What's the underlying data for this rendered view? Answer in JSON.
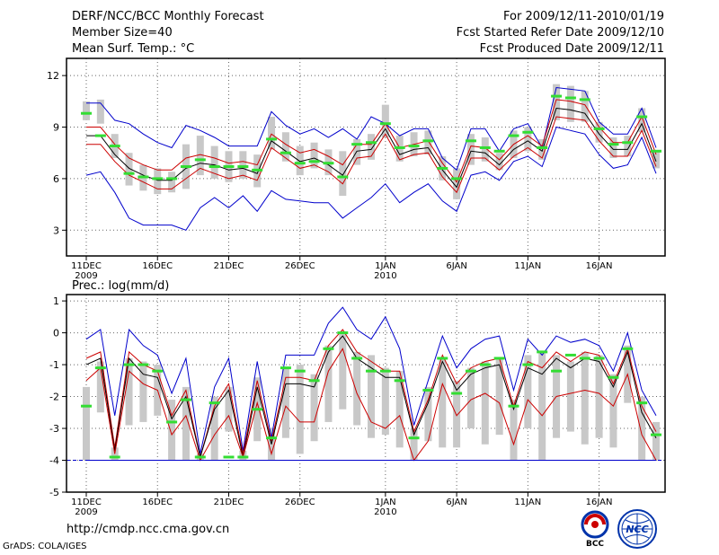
{
  "header": {
    "left": [
      "DERF/NCC/BCC Monthly Forecast",
      "Member Size=40",
      "Mean Surf. Temp.: °C"
    ],
    "right": [
      "For 2009/12/11-2010/01/19",
      "Fcst Started Refer Date 2009/12/10",
      "Fcst Produced Date 2009/12/11"
    ]
  },
  "footer": {
    "url": "http://cmdp.ncc.cma.gov.cn",
    "credit": "GrADS: COLA/IGES"
  },
  "logos": {
    "bcc": "BCC",
    "ncc": "NCC"
  },
  "colors": {
    "ensemble_mean": "#000000",
    "spread": "#cc0000",
    "extremes": "#0000cc",
    "member_bar": "#c8c8c8",
    "observed_marker": "#33dd33",
    "floor_line": "#0000cc",
    "grid": "#666666"
  },
  "chart_data": [
    {
      "type": "line",
      "title": "Mean Surf. Temp.: °C",
      "ylim": [
        1.5,
        13
      ],
      "yticks": [
        3,
        6,
        9,
        12
      ],
      "xticks": [
        {
          "day": 0,
          "label": "11DEC",
          "sub": "2009"
        },
        {
          "day": 5,
          "label": "16DEC",
          "sub": ""
        },
        {
          "day": 10,
          "label": "21DEC",
          "sub": ""
        },
        {
          "day": 15,
          "label": "26DEC",
          "sub": ""
        },
        {
          "day": 21,
          "label": "1JAN",
          "sub": "2010"
        },
        {
          "day": 26,
          "label": "6JAN",
          "sub": ""
        },
        {
          "day": 31,
          "label": "11JAN",
          "sub": ""
        },
        {
          "day": 36,
          "label": "16JAN",
          "sub": ""
        }
      ],
      "series": [
        {
          "name": "max",
          "values": [
            6.2,
            6.4,
            5.2,
            3.7,
            3.3,
            3.3,
            3.3,
            3.0,
            4.3,
            4.9,
            4.3,
            5.0,
            4.1,
            5.3,
            4.8,
            4.7,
            4.6,
            4.6,
            3.7,
            4.3,
            4.9,
            5.7,
            4.6,
            5.2,
            5.7,
            4.7,
            4.1,
            6.2,
            6.4,
            5.9,
            7.0,
            7.3,
            6.7,
            9.0,
            8.8,
            8.6,
            7.4,
            6.6,
            6.8,
            8.4,
            6.3
          ]
        },
        {
          "name": "min",
          "values": [
            10.4,
            10.4,
            9.4,
            9.2,
            8.6,
            8.1,
            7.8,
            9.1,
            8.8,
            8.4,
            7.9,
            7.9,
            7.9,
            9.9,
            9.1,
            8.6,
            8.9,
            8.4,
            8.9,
            8.3,
            9.6,
            9.2,
            8.5,
            8.9,
            8.9,
            7.2,
            6.5,
            8.9,
            8.9,
            7.6,
            8.9,
            9.2,
            7.8,
            11.3,
            11.2,
            11.1,
            9.3,
            8.6,
            8.6,
            10.1,
            7.8
          ]
        },
        {
          "name": "upper",
          "values": [
            9.0,
            9.0,
            8.0,
            7.2,
            6.8,
            6.5,
            6.5,
            7.2,
            7.4,
            7.2,
            6.9,
            7.0,
            6.8,
            8.6,
            8.0,
            7.5,
            7.7,
            7.3,
            6.8,
            8.0,
            8.0,
            9.2,
            7.8,
            8.0,
            8.2,
            6.9,
            5.8,
            7.9,
            7.8,
            7.1,
            8.0,
            8.5,
            7.9,
            10.6,
            10.5,
            10.3,
            9.0,
            8.1,
            8.1,
            9.6,
            7.4
          ]
        },
        {
          "name": "mean",
          "values": [
            8.5,
            8.5,
            7.4,
            6.6,
            6.2,
            5.9,
            5.9,
            6.6,
            6.9,
            6.8,
            6.5,
            6.6,
            6.3,
            8.2,
            7.6,
            7.0,
            7.2,
            6.8,
            6.2,
            7.6,
            7.7,
            8.9,
            7.4,
            7.7,
            7.8,
            6.5,
            5.5,
            7.6,
            7.5,
            6.8,
            7.7,
            8.2,
            7.6,
            10.1,
            10.0,
            9.8,
            8.6,
            7.7,
            7.7,
            9.2,
            7.0
          ]
        },
        {
          "name": "lower",
          "values": [
            8.0,
            8.0,
            7.0,
            6.2,
            5.8,
            5.4,
            5.4,
            6.0,
            6.6,
            6.3,
            6.0,
            6.2,
            5.9,
            7.8,
            7.2,
            6.6,
            6.8,
            6.4,
            5.7,
            7.2,
            7.3,
            8.6,
            7.1,
            7.4,
            7.5,
            6.1,
            5.2,
            7.2,
            7.2,
            6.5,
            7.3,
            7.8,
            7.2,
            9.6,
            9.5,
            9.4,
            8.2,
            7.3,
            7.3,
            8.8,
            6.7
          ]
        }
      ],
      "bars": [
        [
          9.4,
          10.5
        ],
        [
          9.2,
          10.6
        ],
        [
          7.2,
          8.6
        ],
        [
          5.6,
          7.5
        ],
        [
          5.3,
          6.8
        ],
        [
          5.1,
          6.6
        ],
        [
          5.2,
          6.4
        ],
        [
          5.4,
          8.0
        ],
        [
          6.2,
          8.5
        ],
        [
          6.0,
          7.9
        ],
        [
          5.8,
          7.6
        ],
        [
          6.0,
          7.6
        ],
        [
          5.5,
          7.4
        ],
        [
          7.7,
          9.6
        ],
        [
          7.0,
          8.7
        ],
        [
          6.2,
          7.9
        ],
        [
          6.6,
          8.1
        ],
        [
          6.2,
          7.7
        ],
        [
          5.0,
          7.6
        ],
        [
          6.8,
          8.3
        ],
        [
          7.1,
          8.6
        ],
        [
          8.4,
          10.3
        ],
        [
          7.0,
          8.5
        ],
        [
          7.3,
          8.7
        ],
        [
          7.4,
          8.8
        ],
        [
          5.9,
          7.3
        ],
        [
          4.8,
          6.6
        ],
        [
          6.8,
          8.6
        ],
        [
          7.0,
          8.4
        ],
        [
          6.5,
          7.5
        ],
        [
          7.2,
          8.8
        ],
        [
          7.6,
          9.0
        ],
        [
          7.1,
          8.3
        ],
        [
          9.4,
          11.5
        ],
        [
          9.3,
          11.4
        ],
        [
          9.3,
          11.1
        ],
        [
          8.1,
          9.3
        ],
        [
          7.2,
          8.4
        ],
        [
          7.3,
          8.5
        ],
        [
          8.7,
          10.1
        ],
        [
          6.6,
          7.6
        ]
      ],
      "observed": [
        9.8,
        8.5,
        7.9,
        6.3,
        6.1,
        6.0,
        6.0,
        6.7,
        7.1,
        6.7,
        6.7,
        6.7,
        6.5,
        8.3,
        7.5,
        6.9,
        7.0,
        6.9,
        6.1,
        8.0,
        8.1,
        9.2,
        7.8,
        7.9,
        8.2,
        6.6,
        6.0,
        8.2,
        7.8,
        7.6,
        8.5,
        8.7,
        7.8,
        10.8,
        10.7,
        10.6,
        8.9,
        8.0,
        8.1,
        9.6,
        7.6
      ]
    },
    {
      "type": "line",
      "title": "Prec.: log(mm/d)",
      "ylim": [
        -5,
        1.2
      ],
      "yticks": [
        -5,
        -4,
        -3,
        -2,
        -1,
        0,
        1
      ],
      "floor": -4,
      "xticks": [
        {
          "day": 0,
          "label": "11DEC",
          "sub": "2009"
        },
        {
          "day": 5,
          "label": "16DEC",
          "sub": ""
        },
        {
          "day": 10,
          "label": "21DEC",
          "sub": ""
        },
        {
          "day": 15,
          "label": "26DEC",
          "sub": ""
        },
        {
          "day": 21,
          "label": "1JAN",
          "sub": "2010"
        },
        {
          "day": 26,
          "label": "6JAN",
          "sub": ""
        },
        {
          "day": 31,
          "label": "11JAN",
          "sub": ""
        },
        {
          "day": 36,
          "label": "16JAN",
          "sub": ""
        }
      ],
      "series": [
        {
          "name": "max",
          "values": [
            -0.2,
            0.1,
            -2.6,
            0.1,
            -0.4,
            -0.7,
            -1.9,
            -0.8,
            -3.8,
            -1.7,
            -0.8,
            -3.7,
            -0.9,
            -3.3,
            -0.7,
            -0.7,
            -0.7,
            0.3,
            0.8,
            0.1,
            -0.2,
            0.5,
            -0.5,
            -2.9,
            -1.5,
            -0.1,
            -1.1,
            -0.5,
            -0.2,
            -0.1,
            -1.8,
            -0.2,
            -0.7,
            -0.1,
            -0.3,
            -0.2,
            -0.4,
            -1.2,
            0.0,
            -1.8,
            -2.6
          ]
        },
        {
          "name": "upper",
          "values": [
            -0.8,
            -0.6,
            -3.6,
            -0.6,
            -1.0,
            -1.2,
            -2.6,
            -1.8,
            -3.9,
            -2.3,
            -1.6,
            -3.8,
            -1.5,
            -3.4,
            -1.4,
            -1.4,
            -1.5,
            -0.4,
            0.1,
            -0.6,
            -0.9,
            -1.2,
            -1.2,
            -3.1,
            -2.1,
            -0.7,
            -1.6,
            -1.1,
            -0.9,
            -0.8,
            -2.3,
            -0.9,
            -1.1,
            -0.6,
            -0.9,
            -0.6,
            -0.7,
            -1.6,
            -0.5,
            -2.3,
            -3.1
          ]
        },
        {
          "name": "mean",
          "values": [
            -1.0,
            -0.8,
            -3.7,
            -0.8,
            -1.3,
            -1.4,
            -2.7,
            -2.0,
            -3.9,
            -2.4,
            -1.8,
            -3.9,
            -1.7,
            -3.5,
            -1.6,
            -1.6,
            -1.7,
            -0.6,
            -0.1,
            -0.8,
            -1.1,
            -1.4,
            -1.4,
            -3.2,
            -2.2,
            -0.9,
            -1.8,
            -1.3,
            -1.1,
            -1.0,
            -2.4,
            -1.1,
            -1.3,
            -0.8,
            -1.1,
            -0.8,
            -0.9,
            -1.7,
            -0.6,
            -2.5,
            -3.3
          ]
        },
        {
          "name": "lower",
          "values": [
            -1.5,
            -1.1,
            -3.8,
            -1.2,
            -1.6,
            -1.8,
            -3.2,
            -2.6,
            -4.0,
            -3.2,
            -2.6,
            -3.9,
            -2.2,
            -3.8,
            -2.3,
            -2.8,
            -2.8,
            -1.2,
            -0.5,
            -1.9,
            -2.8,
            -3.0,
            -2.6,
            -4.0,
            -3.4,
            -1.6,
            -2.6,
            -2.1,
            -1.9,
            -2.2,
            -3.5,
            -2.1,
            -2.6,
            -2.0,
            -1.9,
            -1.8,
            -1.9,
            -2.3,
            -1.3,
            -3.2,
            -4.0
          ]
        },
        {
          "name": "min",
          "values": [
            -4.0,
            -4.0,
            -4.0,
            -4.0,
            -4.0,
            -4.0,
            -4.0,
            -4.0,
            -4.0,
            -4.0,
            -4.0,
            -4.0,
            -4.0,
            -4.0,
            -4.0,
            -4.0,
            -4.0,
            -4.0,
            -4.0,
            -4.0,
            -4.0,
            -4.0,
            -4.0,
            -4.0,
            -4.0,
            -4.0,
            -4.0,
            -4.0,
            -4.0,
            -4.0,
            -4.0,
            -4.0,
            -4.0,
            -4.0,
            -4.0,
            -4.0,
            -4.0,
            -4.0,
            -4.0,
            -4.0,
            -4.0
          ]
        }
      ],
      "bars": [
        [
          -4.0,
          -1.7
        ],
        [
          -2.5,
          -0.9
        ],
        [
          -4.0,
          -3.6
        ],
        [
          -2.9,
          -0.8
        ],
        [
          -2.8,
          -0.9
        ],
        [
          -2.6,
          -1.0
        ],
        [
          -4.0,
          -2.1
        ],
        [
          -4.0,
          -1.7
        ],
        [
          -4.0,
          -3.8
        ],
        [
          -4.0,
          -2.0
        ],
        [
          -3.1,
          -1.7
        ],
        [
          -4.0,
          -3.7
        ],
        [
          -3.4,
          -1.4
        ],
        [
          -4.0,
          -3.0
        ],
        [
          -3.3,
          -1.1
        ],
        [
          -3.8,
          -1.0
        ],
        [
          -3.4,
          -1.3
        ],
        [
          -2.8,
          -0.4
        ],
        [
          -2.4,
          0.0
        ],
        [
          -2.9,
          -0.6
        ],
        [
          -3.3,
          -0.7
        ],
        [
          -3.2,
          -1.1
        ],
        [
          -3.6,
          -1.2
        ],
        [
          -4.0,
          -3.0
        ],
        [
          -3.4,
          -1.7
        ],
        [
          -3.6,
          -0.8
        ],
        [
          -3.6,
          -1.5
        ],
        [
          -3.0,
          -1.1
        ],
        [
          -3.5,
          -0.9
        ],
        [
          -3.2,
          -0.8
        ],
        [
          -4.0,
          -2.1
        ],
        [
          -3.0,
          -0.7
        ],
        [
          -4.0,
          -0.6
        ],
        [
          -3.3,
          -0.7
        ],
        [
          -3.1,
          -0.9
        ],
        [
          -3.5,
          -0.6
        ],
        [
          -3.3,
          -0.7
        ],
        [
          -3.6,
          -1.3
        ],
        [
          -2.2,
          -0.4
        ],
        [
          -4.0,
          -2.0
        ],
        [
          -4.0,
          -2.8
        ]
      ],
      "observed": [
        -2.3,
        -1.1,
        -3.9,
        -1.0,
        -1.0,
        -1.2,
        -2.8,
        -2.1,
        -3.9,
        -2.2,
        -3.9,
        -3.9,
        -2.4,
        -3.3,
        -1.1,
        -1.2,
        -1.5,
        -0.5,
        0.0,
        -0.8,
        -1.2,
        -1.2,
        -1.5,
        -3.3,
        -1.8,
        -0.8,
        -1.9,
        -1.2,
        -1.0,
        -0.8,
        -2.3,
        -1.0,
        -0.6,
        -1.2,
        -0.7,
        -0.8,
        -0.8,
        -1.4,
        -0.5,
        -2.2,
        -3.2
      ]
    }
  ]
}
